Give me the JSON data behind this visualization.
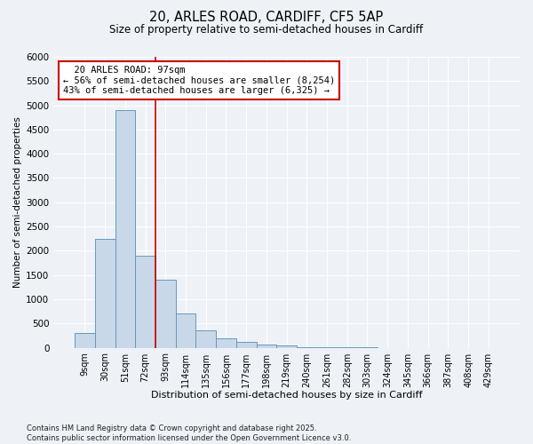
{
  "title_line1": "20, ARLES ROAD, CARDIFF, CF5 5AP",
  "title_line2": "Size of property relative to semi-detached houses in Cardiff",
  "xlabel": "Distribution of semi-detached houses by size in Cardiff",
  "ylabel": "Number of semi-detached properties",
  "categories": [
    "9sqm",
    "30sqm",
    "51sqm",
    "72sqm",
    "93sqm",
    "114sqm",
    "135sqm",
    "156sqm",
    "177sqm",
    "198sqm",
    "219sqm",
    "240sqm",
    "261sqm",
    "282sqm",
    "303sqm",
    "324sqm",
    "345sqm",
    "366sqm",
    "387sqm",
    "408sqm",
    "429sqm"
  ],
  "values": [
    300,
    2250,
    4900,
    1900,
    1400,
    700,
    350,
    200,
    120,
    75,
    45,
    20,
    8,
    3,
    2,
    1,
    0,
    0,
    0,
    0,
    0
  ],
  "bar_color": "#c8d8e8",
  "bar_edge_color": "#6699bb",
  "vertical_line_x": 3.5,
  "annotation_title": "20 ARLES ROAD: 97sqm",
  "annotation_line1": "← 56% of semi-detached houses are smaller (8,254)",
  "annotation_line2": "43% of semi-detached houses are larger (6,325) →",
  "annotation_box_color": "#cc0000",
  "ylim": [
    0,
    6000
  ],
  "yticks": [
    0,
    500,
    1000,
    1500,
    2000,
    2500,
    3000,
    3500,
    4000,
    4500,
    5000,
    5500,
    6000
  ],
  "footer_line1": "Contains HM Land Registry data © Crown copyright and database right 2025.",
  "footer_line2": "Contains public sector information licensed under the Open Government Licence v3.0.",
  "background_color": "#eef2f7",
  "plot_background": "#eef2f7",
  "grid_color": "#ffffff"
}
